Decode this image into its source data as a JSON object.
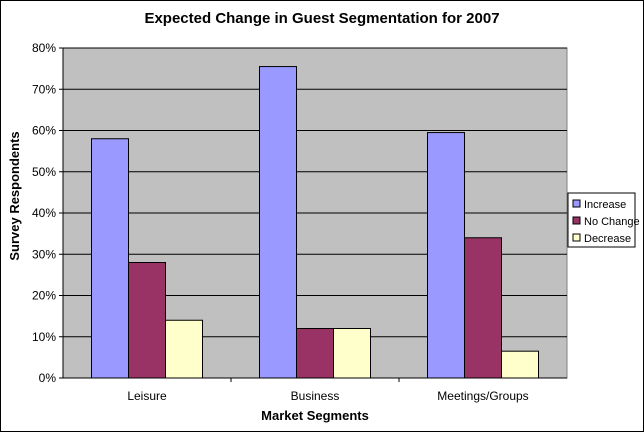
{
  "chart_data": {
    "type": "bar",
    "title": "Expected Change in Guest Segmentation for 2007",
    "xlabel": "Market Segments",
    "ylabel": "Survey Respondents",
    "categories": [
      "Leisure",
      "Business",
      "Meetings/Groups"
    ],
    "series": [
      {
        "name": "Increase",
        "values": [
          58,
          75.5,
          59.5
        ],
        "color": "#9999ff"
      },
      {
        "name": "No Change",
        "values": [
          28,
          12,
          34
        ],
        "color": "#993366"
      },
      {
        "name": "Decrease",
        "values": [
          14,
          12,
          6.5
        ],
        "color": "#ffffcc"
      }
    ],
    "ylim": [
      0,
      80
    ],
    "y_ticks": [
      "0%",
      "10%",
      "20%",
      "30%",
      "40%",
      "50%",
      "60%",
      "70%",
      "80%"
    ],
    "y_tick_values": [
      0,
      10,
      20,
      30,
      40,
      50,
      60,
      70,
      80
    ],
    "grid": true,
    "plot_background": "#c0c0c0",
    "legend_position": "right"
  }
}
